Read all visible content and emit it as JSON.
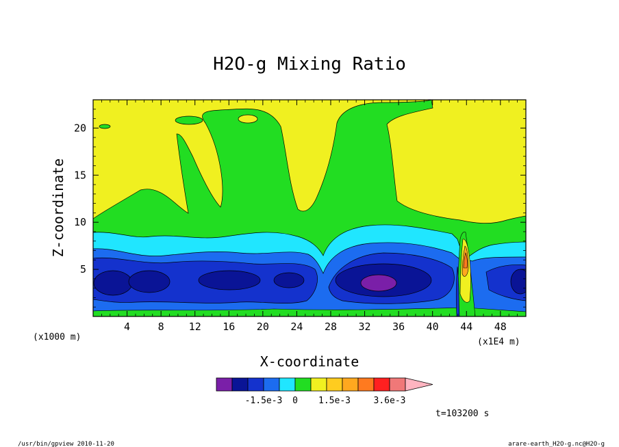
{
  "chart_data": {
    "type": "contour",
    "title": "H2O-g Mixing Ratio",
    "xlabel": "X-coordinate",
    "ylabel": "Z-coordinate",
    "x_unit_left": "(x1000 m)",
    "x_unit_right": "(x1E4 m)",
    "xlim": [
      0,
      51
    ],
    "ylim": [
      0,
      23
    ],
    "xticks": [
      "4",
      "8",
      "12",
      "16",
      "20",
      "24",
      "28",
      "32",
      "36",
      "40",
      "44",
      "48"
    ],
    "xtick_values": [
      4,
      8,
      12,
      16,
      20,
      24,
      28,
      32,
      36,
      40,
      44,
      48
    ],
    "yticks": [
      "5",
      "10",
      "15",
      "20"
    ],
    "ytick_values": [
      5,
      10,
      15,
      20
    ],
    "colorbar": {
      "colors": [
        "#7a1fa8",
        "#0a1496",
        "#1432cd",
        "#1c6cf0",
        "#20e6ff",
        "#22dd22",
        "#f0f020",
        "#ffcc1f",
        "#ffa81f",
        "#ff7a1f",
        "#ff2020",
        "#f07878",
        "#ffb4c0"
      ],
      "labels": [
        "-1.5e-3",
        "0",
        "1.5e-3",
        "3.6e-3"
      ]
    },
    "time_label": "t=103200 s",
    "grid": false
  },
  "footer": {
    "left": "/usr/bin/gpview  2010-11-20",
    "right": "arare-earth_H2O-g.nc@H2O-g"
  }
}
